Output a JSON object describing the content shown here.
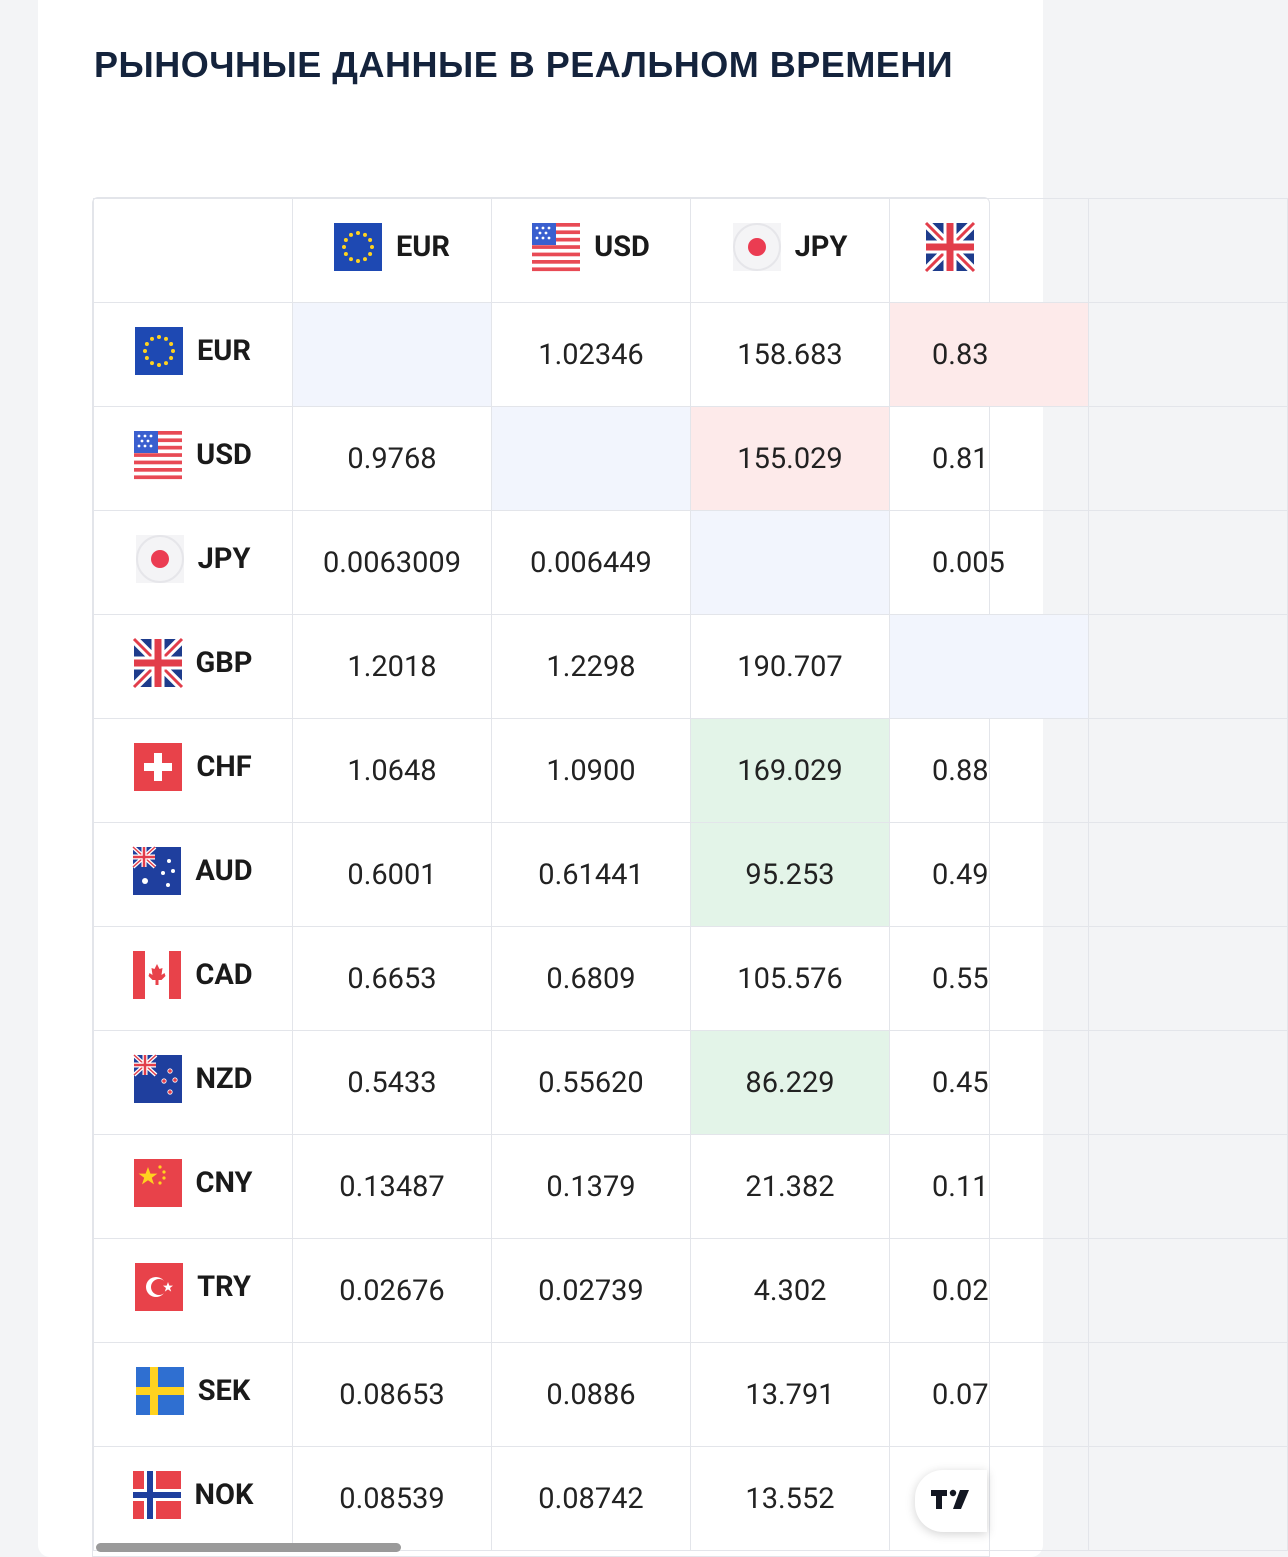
{
  "title": "РЫНОЧНЫЕ ДАННЫЕ В РЕАЛЬНОМ ВРЕМЕНИ",
  "columns": [
    {
      "code": "EUR",
      "icon": "eu-flag-icon"
    },
    {
      "code": "USD",
      "icon": "us-flag-icon"
    },
    {
      "code": "JPY",
      "icon": "japan-flag-icon"
    },
    {
      "code": "",
      "icon": "uk-flag-icon"
    }
  ],
  "rows": [
    {
      "code": "EUR",
      "icon": "eu-flag-icon",
      "cells": [
        "",
        "1.02346",
        "158.683",
        "0.83"
      ],
      "shade": [
        "diag",
        "",
        "",
        "red"
      ]
    },
    {
      "code": "USD",
      "icon": "us-flag-icon",
      "cells": [
        "0.9768",
        "",
        "155.029",
        "0.81"
      ],
      "shade": [
        "",
        "diag",
        "red",
        ""
      ]
    },
    {
      "code": "JPY",
      "icon": "japan-flag-icon",
      "cells": [
        "0.0063009",
        "0.006449",
        "",
        "0.005"
      ],
      "shade": [
        "",
        "",
        "diag",
        ""
      ]
    },
    {
      "code": "GBP",
      "icon": "uk-flag-icon",
      "cells": [
        "1.2018",
        "1.2298",
        "190.707",
        ""
      ],
      "shade": [
        "",
        "",
        "",
        "diag"
      ]
    },
    {
      "code": "CHF",
      "icon": "swiss-flag-icon",
      "cells": [
        "1.0648",
        "1.0900",
        "169.029",
        "0.88"
      ],
      "shade": [
        "",
        "",
        "green",
        ""
      ]
    },
    {
      "code": "AUD",
      "icon": "australia-flag-icon",
      "cells": [
        "0.6001",
        "0.61441",
        "95.253",
        "0.49"
      ],
      "shade": [
        "",
        "",
        "green",
        ""
      ]
    },
    {
      "code": "CAD",
      "icon": "canada-flag-icon",
      "cells": [
        "0.6653",
        "0.6809",
        "105.576",
        "0.55"
      ],
      "shade": [
        "",
        "",
        "",
        ""
      ]
    },
    {
      "code": "NZD",
      "icon": "new-zealand-flag-icon",
      "cells": [
        "0.5433",
        "0.55620",
        "86.229",
        "0.45"
      ],
      "shade": [
        "",
        "",
        "green",
        ""
      ]
    },
    {
      "code": "CNY",
      "icon": "china-flag-icon",
      "cells": [
        "0.13487",
        "0.1379",
        "21.382",
        "0.11"
      ],
      "shade": [
        "",
        "",
        "",
        ""
      ]
    },
    {
      "code": "TRY",
      "icon": "turkey-flag-icon",
      "cells": [
        "0.02676",
        "0.02739",
        "4.302",
        "0.02"
      ],
      "shade": [
        "",
        "",
        "",
        ""
      ]
    },
    {
      "code": "SEK",
      "icon": "sweden-flag-icon",
      "cells": [
        "0.08653",
        "0.0886",
        "13.791",
        "0.07"
      ],
      "shade": [
        "",
        "",
        "",
        ""
      ]
    },
    {
      "code": "NOK",
      "icon": "norway-flag-icon",
      "cells": [
        "0.08539",
        "0.08742",
        "13.552",
        ""
      ],
      "shade": [
        "",
        "",
        "",
        ""
      ]
    }
  ],
  "colors": {
    "diag": "#f2f5fd",
    "red": "#fdeaea",
    "green": "#e3f4e8",
    "title": "#14233c"
  },
  "badge": {
    "icon": "tradingview-logo-icon"
  }
}
